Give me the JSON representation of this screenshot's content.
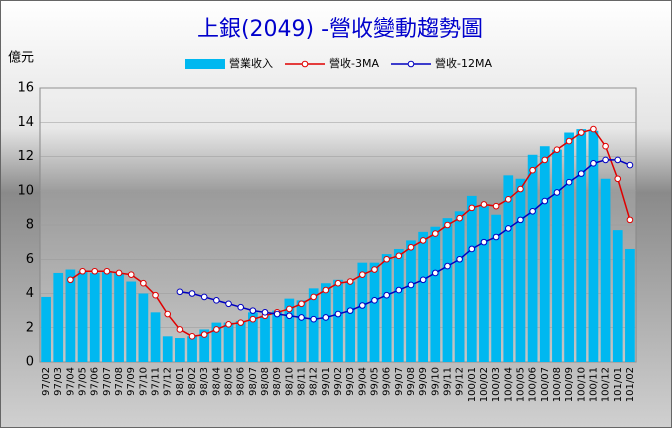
{
  "chart_data": {
    "type": "bar-line",
    "title": "上銀(2049) -營收變動趨勢圖",
    "y_label": "億元",
    "categories": [
      "97/02",
      "97/03",
      "97/04",
      "97/05",
      "97/06",
      "97/07",
      "97/08",
      "97/09",
      "97/10",
      "97/11",
      "97/12",
      "98/01",
      "98/02",
      "98/03",
      "98/04",
      "98/05",
      "98/06",
      "98/07",
      "98/08",
      "98/09",
      "98/10",
      "98/11",
      "98/12",
      "99/01",
      "99/02",
      "99/03",
      "99/04",
      "99/05",
      "99/06",
      "99/07",
      "99/08",
      "99/09",
      "99/10",
      "99/11",
      "99/12",
      "100/01",
      "100/02",
      "100/03",
      "100/04",
      "100/05",
      "100/06",
      "100/07",
      "100/08",
      "100/09",
      "100/10",
      "100/11",
      "100/12",
      "101/01",
      "101/02"
    ],
    "series": [
      {
        "name": "營業收入",
        "kind": "bar",
        "color": "#00b8f0",
        "values": [
          3.8,
          5.2,
          5.4,
          5.3,
          5.2,
          5.3,
          5.2,
          4.7,
          4.0,
          2.9,
          1.5,
          1.4,
          1.5,
          1.9,
          2.3,
          2.3,
          2.4,
          2.9,
          2.7,
          3.0,
          3.7,
          3.6,
          4.3,
          4.6,
          4.8,
          4.7,
          5.8,
          5.8,
          6.3,
          6.6,
          7.1,
          7.6,
          7.9,
          8.4,
          8.8,
          9.7,
          9.1,
          8.6,
          10.9,
          10.7,
          12.1,
          12.6,
          12.4,
          13.4,
          13.6,
          13.5,
          10.7,
          7.7,
          6.6
        ]
      },
      {
        "name": "營收-3MA",
        "kind": "line",
        "color": "#e00000",
        "values": [
          null,
          null,
          4.8,
          5.3,
          5.3,
          5.3,
          5.2,
          5.1,
          4.6,
          3.9,
          2.8,
          1.9,
          1.5,
          1.6,
          1.9,
          2.2,
          2.3,
          2.5,
          2.7,
          2.9,
          3.1,
          3.4,
          3.8,
          4.2,
          4.6,
          4.7,
          5.1,
          5.4,
          6.0,
          6.2,
          6.7,
          7.1,
          7.5,
          8.0,
          8.4,
          9.0,
          9.2,
          9.1,
          9.5,
          10.1,
          11.2,
          11.8,
          12.4,
          12.9,
          13.4,
          13.6,
          12.6,
          10.7,
          8.3
        ]
      },
      {
        "name": "營收-12MA",
        "kind": "line",
        "color": "#0000c0",
        "values": [
          null,
          null,
          null,
          null,
          null,
          null,
          null,
          null,
          null,
          null,
          null,
          4.1,
          4.0,
          3.8,
          3.6,
          3.4,
          3.2,
          3.0,
          2.9,
          2.8,
          2.7,
          2.6,
          2.5,
          2.6,
          2.8,
          3.0,
          3.3,
          3.6,
          3.9,
          4.2,
          4.5,
          4.8,
          5.2,
          5.6,
          6.0,
          6.6,
          7.0,
          7.3,
          7.8,
          8.3,
          8.8,
          9.4,
          9.9,
          10.5,
          11.0,
          11.6,
          11.8,
          11.8,
          11.5
        ]
      }
    ],
    "ylim": [
      0,
      16
    ],
    "yticks": [
      0,
      2,
      4,
      6,
      8,
      10,
      12,
      14,
      16
    ],
    "grid": true
  }
}
